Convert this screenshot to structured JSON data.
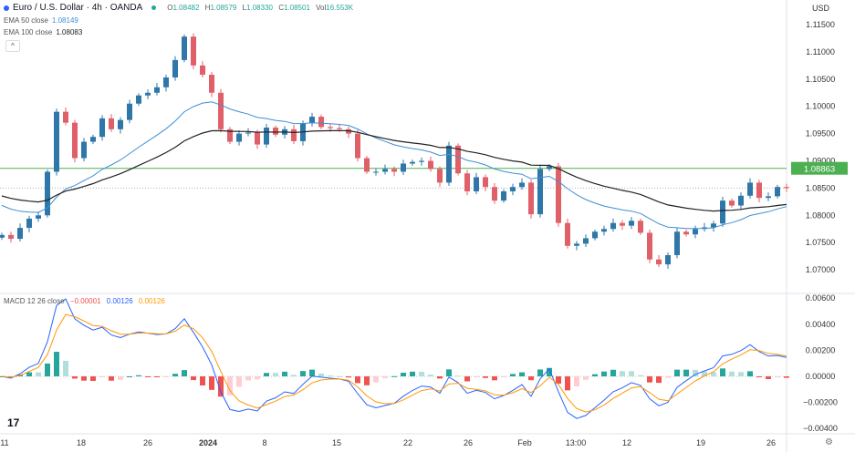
{
  "header": {
    "symbol": "Euro / U.S. Dollar · 4h · OANDA",
    "ohlc": {
      "o_label": "O",
      "o": "1.08482",
      "h_label": "H",
      "h": "1.08579",
      "l_label": "L",
      "l": "1.08330",
      "c_label": "C",
      "c": "1.08501",
      "vol_label": "Vol",
      "vol": "16.553K"
    },
    "ema50": {
      "label": "EMA 50 close",
      "value": "1.08149"
    },
    "ema100": {
      "label": "EMA 100 close",
      "value": "1.08083"
    },
    "collapse_icon": "chevron-up-icon",
    "currency": "USD"
  },
  "macd_legend": {
    "label": "MACD 12 26 close",
    "hist": "−0.00001",
    "macd": "0.00126",
    "signal": "0.00126"
  },
  "colors": {
    "up": "#2e77a8",
    "down": "#e0606a",
    "ema50": "#3d8fd6",
    "ema100": "#222222",
    "macd": "#2962ff",
    "signal": "#ff9800",
    "hist_up": "#26a69a",
    "hist_up_light": "#b2dfdb",
    "hist_down": "#ef5350",
    "hist_down_light": "#ffcdd2",
    "level": "#4caf50"
  },
  "chart_data": [
    {
      "type": "candlestick",
      "title": "Euro / U.S. Dollar · 4h · OANDA",
      "ylim": [
        1.0655,
        1.1195
      ],
      "yticks": [
        "1.11500",
        "1.11000",
        "1.10500",
        "1.10000",
        "1.09500",
        "1.09000",
        "1.08500",
        "1.08000",
        "1.07500",
        "1.07000"
      ],
      "xticks": [
        "11",
        "18",
        "26",
        "2024",
        "8",
        "15",
        "22",
        "26",
        "Feb",
        "13:00",
        "12",
        "19",
        "26"
      ],
      "horizontal_level": {
        "value": 1.08863,
        "label": "1.08863"
      },
      "last_price": 1.08501,
      "closes": [
        1.0764,
        1.0757,
        1.0777,
        1.0794,
        1.08,
        1.088,
        1.099,
        1.097,
        1.0905,
        1.0935,
        1.0944,
        1.0978,
        1.0958,
        1.0975,
        1.1005,
        1.102,
        1.1025,
        1.1035,
        1.1053,
        1.1085,
        1.1128,
        1.1075,
        1.1058,
        1.1025,
        1.0958,
        1.0935,
        1.095,
        1.0952,
        1.093,
        1.0961,
        1.0948,
        1.0958,
        1.0936,
        1.0969,
        1.0981,
        1.0962,
        1.096,
        1.0958,
        1.095,
        1.0905,
        1.088,
        1.088,
        1.0885,
        1.088,
        1.0895,
        1.0898,
        1.09,
        1.0885,
        1.086,
        1.0928,
        1.0877,
        1.0844,
        1.087,
        1.0852,
        1.0827,
        1.0844,
        1.0852,
        1.086,
        1.0802,
        1.0885,
        1.089,
        1.0786,
        1.0744,
        1.0748,
        1.0758,
        1.077,
        1.0775,
        1.0786,
        1.0781,
        1.079,
        1.0768,
        1.0719,
        1.071,
        1.0727,
        1.077,
        1.0765,
        1.0775,
        1.0778,
        1.0785,
        1.0827,
        1.0818,
        1.0836,
        1.086,
        1.0832,
        1.0835,
        1.0852,
        1.085
      ],
      "series": [
        {
          "name": "EMA 50 close"
        },
        {
          "name": "EMA 100 close"
        }
      ],
      "grid": false
    },
    {
      "type": "macd",
      "title": "MACD 12 26 close",
      "ylim": [
        -0.0045,
        0.0065
      ],
      "yticks": [
        "0.00600",
        "0.00400",
        "0.00200",
        "0.00000",
        "−0.00200",
        "−0.00400"
      ],
      "series": [
        {
          "name": "MACD"
        },
        {
          "name": "Signal"
        },
        {
          "name": "Histogram"
        }
      ]
    }
  ]
}
